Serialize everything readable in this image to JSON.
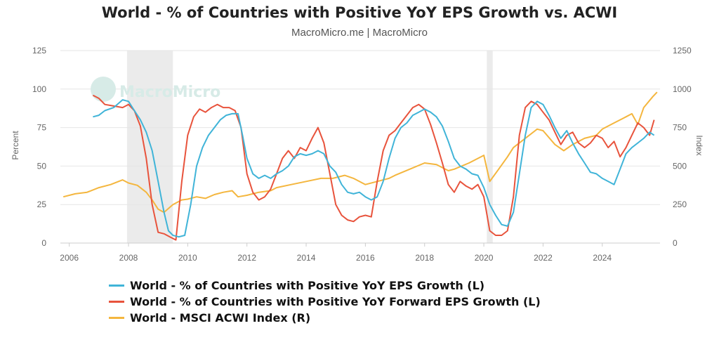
{
  "title": "World - % of Countries with Positive YoY EPS Growth vs. ACWI",
  "subtitle": "MacroMicro.me | MacroMicro",
  "watermark": "MacroMicro",
  "colors": {
    "eps": "#40b4d8",
    "fwd": "#e8533c",
    "acwi": "#f4b63e",
    "recession": "#ebebeb",
    "grid": "#e6e6e6"
  },
  "chart_data": {
    "type": "line",
    "title": "World - % of Countries with Positive YoY EPS Growth vs. ACWI",
    "x_ticks": [
      "2006",
      "2008",
      "2010",
      "2012",
      "2014",
      "2016",
      "2018",
      "2020",
      "2022",
      "2024"
    ],
    "xlim": [
      2005.7,
      2025.95
    ],
    "left_axis": {
      "label": "Percent",
      "ylim": [
        0,
        125
      ],
      "ticks": [
        "0",
        "25",
        "50",
        "75",
        "100",
        "125"
      ]
    },
    "right_axis": {
      "label": "Index",
      "ylim": [
        0,
        1250
      ],
      "ticks": [
        "0",
        "250",
        "500",
        "750",
        "1000",
        "1250"
      ]
    },
    "recession_bands": [
      [
        2007.95,
        2009.5
      ],
      [
        2020.1,
        2020.3
      ]
    ],
    "series": [
      {
        "name": "World - % of Countries with Positive YoY EPS Growth (L)",
        "key": "eps",
        "axis": "left",
        "points": [
          [
            2006.8,
            82
          ],
          [
            2007.0,
            83
          ],
          [
            2007.2,
            86
          ],
          [
            2007.5,
            88
          ],
          [
            2007.8,
            93
          ],
          [
            2008.0,
            92
          ],
          [
            2008.2,
            86
          ],
          [
            2008.4,
            80
          ],
          [
            2008.6,
            72
          ],
          [
            2008.8,
            60
          ],
          [
            2009.0,
            40
          ],
          [
            2009.2,
            20
          ],
          [
            2009.35,
            8
          ],
          [
            2009.5,
            5
          ],
          [
            2009.7,
            4
          ],
          [
            2009.9,
            5
          ],
          [
            2010.1,
            25
          ],
          [
            2010.3,
            50
          ],
          [
            2010.5,
            62
          ],
          [
            2010.7,
            70
          ],
          [
            2010.9,
            75
          ],
          [
            2011.1,
            80
          ],
          [
            2011.3,
            83
          ],
          [
            2011.5,
            84
          ],
          [
            2011.7,
            84
          ],
          [
            2011.85,
            70
          ],
          [
            2012.0,
            55
          ],
          [
            2012.2,
            45
          ],
          [
            2012.4,
            42
          ],
          [
            2012.6,
            44
          ],
          [
            2012.8,
            42
          ],
          [
            2013.0,
            45
          ],
          [
            2013.2,
            47
          ],
          [
            2013.4,
            50
          ],
          [
            2013.6,
            56
          ],
          [
            2013.8,
            58
          ],
          [
            2014.0,
            57
          ],
          [
            2014.2,
            58
          ],
          [
            2014.4,
            60
          ],
          [
            2014.6,
            58
          ],
          [
            2014.8,
            50
          ],
          [
            2015.0,
            46
          ],
          [
            2015.2,
            38
          ],
          [
            2015.4,
            33
          ],
          [
            2015.6,
            32
          ],
          [
            2015.8,
            33
          ],
          [
            2016.0,
            30
          ],
          [
            2016.2,
            28
          ],
          [
            2016.4,
            30
          ],
          [
            2016.6,
            40
          ],
          [
            2016.8,
            55
          ],
          [
            2017.0,
            68
          ],
          [
            2017.2,
            75
          ],
          [
            2017.4,
            78
          ],
          [
            2017.6,
            83
          ],
          [
            2017.8,
            85
          ],
          [
            2018.0,
            87
          ],
          [
            2018.2,
            85
          ],
          [
            2018.4,
            82
          ],
          [
            2018.6,
            76
          ],
          [
            2018.8,
            66
          ],
          [
            2019.0,
            55
          ],
          [
            2019.2,
            50
          ],
          [
            2019.4,
            48
          ],
          [
            2019.6,
            45
          ],
          [
            2019.8,
            44
          ],
          [
            2020.0,
            36
          ],
          [
            2020.2,
            25
          ],
          [
            2020.4,
            18
          ],
          [
            2020.6,
            12
          ],
          [
            2020.8,
            11
          ],
          [
            2021.0,
            20
          ],
          [
            2021.2,
            45
          ],
          [
            2021.4,
            70
          ],
          [
            2021.6,
            88
          ],
          [
            2021.8,
            92
          ],
          [
            2022.0,
            90
          ],
          [
            2022.2,
            83
          ],
          [
            2022.4,
            75
          ],
          [
            2022.6,
            68
          ],
          [
            2022.8,
            73
          ],
          [
            2023.0,
            65
          ],
          [
            2023.2,
            58
          ],
          [
            2023.4,
            52
          ],
          [
            2023.6,
            46
          ],
          [
            2023.8,
            45
          ],
          [
            2024.0,
            42
          ],
          [
            2024.2,
            40
          ],
          [
            2024.4,
            38
          ],
          [
            2024.6,
            48
          ],
          [
            2024.8,
            58
          ],
          [
            2025.0,
            62
          ],
          [
            2025.2,
            65
          ],
          [
            2025.4,
            68
          ],
          [
            2025.6,
            72
          ],
          [
            2025.75,
            70
          ]
        ]
      },
      {
        "name": "World - % of Countries with Positive YoY Forward EPS Growth (L)",
        "key": "fwd",
        "axis": "left",
        "points": [
          [
            2006.8,
            96
          ],
          [
            2007.0,
            94
          ],
          [
            2007.2,
            90
          ],
          [
            2007.5,
            89
          ],
          [
            2007.8,
            88
          ],
          [
            2008.0,
            90
          ],
          [
            2008.2,
            86
          ],
          [
            2008.4,
            76
          ],
          [
            2008.6,
            55
          ],
          [
            2008.8,
            25
          ],
          [
            2009.0,
            7
          ],
          [
            2009.2,
            6
          ],
          [
            2009.4,
            4
          ],
          [
            2009.6,
            2
          ],
          [
            2009.8,
            40
          ],
          [
            2010.0,
            70
          ],
          [
            2010.2,
            82
          ],
          [
            2010.4,
            87
          ],
          [
            2010.6,
            85
          ],
          [
            2010.8,
            88
          ],
          [
            2011.0,
            90
          ],
          [
            2011.2,
            88
          ],
          [
            2011.4,
            88
          ],
          [
            2011.6,
            86
          ],
          [
            2011.8,
            75
          ],
          [
            2012.0,
            45
          ],
          [
            2012.2,
            33
          ],
          [
            2012.4,
            28
          ],
          [
            2012.6,
            30
          ],
          [
            2012.8,
            35
          ],
          [
            2013.0,
            45
          ],
          [
            2013.2,
            55
          ],
          [
            2013.4,
            60
          ],
          [
            2013.6,
            55
          ],
          [
            2013.8,
            62
          ],
          [
            2014.0,
            60
          ],
          [
            2014.2,
            68
          ],
          [
            2014.4,
            75
          ],
          [
            2014.6,
            65
          ],
          [
            2014.8,
            45
          ],
          [
            2015.0,
            25
          ],
          [
            2015.2,
            18
          ],
          [
            2015.4,
            15
          ],
          [
            2015.6,
            14
          ],
          [
            2015.8,
            17
          ],
          [
            2016.0,
            18
          ],
          [
            2016.2,
            17
          ],
          [
            2016.4,
            40
          ],
          [
            2016.6,
            60
          ],
          [
            2016.8,
            70
          ],
          [
            2017.0,
            73
          ],
          [
            2017.2,
            78
          ],
          [
            2017.4,
            83
          ],
          [
            2017.6,
            88
          ],
          [
            2017.8,
            90
          ],
          [
            2018.0,
            87
          ],
          [
            2018.2,
            77
          ],
          [
            2018.4,
            65
          ],
          [
            2018.6,
            52
          ],
          [
            2018.8,
            38
          ],
          [
            2019.0,
            33
          ],
          [
            2019.2,
            40
          ],
          [
            2019.4,
            37
          ],
          [
            2019.6,
            35
          ],
          [
            2019.8,
            38
          ],
          [
            2020.0,
            30
          ],
          [
            2020.2,
            8
          ],
          [
            2020.4,
            5
          ],
          [
            2020.6,
            5
          ],
          [
            2020.8,
            8
          ],
          [
            2021.0,
            30
          ],
          [
            2021.2,
            70
          ],
          [
            2021.4,
            88
          ],
          [
            2021.6,
            92
          ],
          [
            2021.8,
            90
          ],
          [
            2022.0,
            85
          ],
          [
            2022.2,
            80
          ],
          [
            2022.4,
            72
          ],
          [
            2022.6,
            64
          ],
          [
            2022.8,
            70
          ],
          [
            2023.0,
            72
          ],
          [
            2023.2,
            65
          ],
          [
            2023.4,
            62
          ],
          [
            2023.6,
            65
          ],
          [
            2023.8,
            70
          ],
          [
            2024.0,
            68
          ],
          [
            2024.2,
            62
          ],
          [
            2024.4,
            66
          ],
          [
            2024.6,
            56
          ],
          [
            2024.8,
            62
          ],
          [
            2025.0,
            70
          ],
          [
            2025.2,
            78
          ],
          [
            2025.4,
            75
          ],
          [
            2025.6,
            70
          ],
          [
            2025.75,
            80
          ]
        ]
      },
      {
        "name": "World - MSCI ACWI Index (R)",
        "key": "acwi",
        "axis": "right",
        "points": [
          [
            2005.8,
            300
          ],
          [
            2006.2,
            320
          ],
          [
            2006.6,
            330
          ],
          [
            2007.0,
            360
          ],
          [
            2007.4,
            380
          ],
          [
            2007.8,
            410
          ],
          [
            2008.0,
            390
          ],
          [
            2008.3,
            375
          ],
          [
            2008.6,
            330
          ],
          [
            2008.8,
            280
          ],
          [
            2009.0,
            220
          ],
          [
            2009.2,
            200
          ],
          [
            2009.5,
            250
          ],
          [
            2009.8,
            280
          ],
          [
            2010.0,
            285
          ],
          [
            2010.3,
            300
          ],
          [
            2010.6,
            290
          ],
          [
            2010.9,
            315
          ],
          [
            2011.2,
            330
          ],
          [
            2011.5,
            340
          ],
          [
            2011.7,
            300
          ],
          [
            2012.0,
            310
          ],
          [
            2012.4,
            330
          ],
          [
            2012.8,
            340
          ],
          [
            2013.0,
            360
          ],
          [
            2013.5,
            380
          ],
          [
            2014.0,
            400
          ],
          [
            2014.5,
            420
          ],
          [
            2014.9,
            420
          ],
          [
            2015.3,
            440
          ],
          [
            2015.6,
            420
          ],
          [
            2016.0,
            380
          ],
          [
            2016.4,
            400
          ],
          [
            2016.8,
            420
          ],
          [
            2017.0,
            440
          ],
          [
            2017.5,
            480
          ],
          [
            2018.0,
            520
          ],
          [
            2018.4,
            510
          ],
          [
            2018.8,
            470
          ],
          [
            2019.0,
            480
          ],
          [
            2019.5,
            520
          ],
          [
            2020.0,
            570
          ],
          [
            2020.2,
            400
          ],
          [
            2020.5,
            480
          ],
          [
            2020.8,
            560
          ],
          [
            2021.0,
            620
          ],
          [
            2021.4,
            680
          ],
          [
            2021.8,
            740
          ],
          [
            2022.0,
            730
          ],
          [
            2022.4,
            640
          ],
          [
            2022.7,
            600
          ],
          [
            2023.0,
            640
          ],
          [
            2023.4,
            680
          ],
          [
            2023.8,
            700
          ],
          [
            2024.0,
            740
          ],
          [
            2024.4,
            780
          ],
          [
            2024.8,
            820
          ],
          [
            2025.0,
            840
          ],
          [
            2025.2,
            770
          ],
          [
            2025.4,
            880
          ],
          [
            2025.7,
            950
          ],
          [
            2025.85,
            980
          ]
        ]
      }
    ],
    "legend_position": "bottom-left"
  }
}
